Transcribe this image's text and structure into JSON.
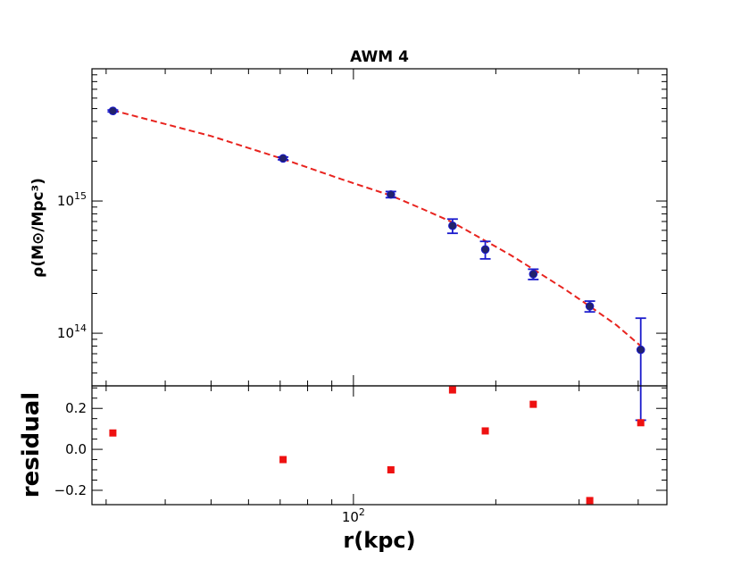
{
  "chart_data": [
    {
      "type": "scatter",
      "title": "AWM 4",
      "xlabel": "r(kpc)",
      "ylabel": "ρ(M⊙/Mpc³)",
      "xscale": "log",
      "yscale": "log",
      "xlim": [
        28,
        460
      ],
      "ylim": [
        40000000000000.0,
        1e+16
      ],
      "xticks": [
        {
          "value": 100,
          "label": "10",
          "exp": "2"
        }
      ],
      "yticks": [
        {
          "value": 100000000000000.0,
          "label": "10",
          "exp": "14"
        },
        {
          "value": 1000000000000000.0,
          "label": "10",
          "exp": "15"
        }
      ],
      "series": [
        {
          "kind": "data",
          "color": "#1f1f9f",
          "x": [
            31,
            71,
            120,
            162,
            190,
            240,
            316,
            405
          ],
          "y": [
            4800000000000000.0,
            2100000000000000.0,
            1120000000000000.0,
            650000000000000.0,
            430000000000000.0,
            280000000000000.0,
            160000000000000.0,
            75000000000000.0
          ],
          "yerr_low": [
            80000000000000.0,
            50000000000000.0,
            60000000000000.0,
            80000000000000.0,
            65000000000000.0,
            25000000000000.0,
            15000000000000.0,
            53000000000000.0
          ],
          "yerr_high": [
            80000000000000.0,
            50000000000000.0,
            60000000000000.0,
            80000000000000.0,
            65000000000000.0,
            25000000000000.0,
            15000000000000.0,
            55000000000000.0
          ]
        },
        {
          "kind": "fit",
          "style": "dashed",
          "color": "#e8231e",
          "x": [
            31,
            50,
            71,
            95,
            120,
            140,
            162,
            190,
            215,
            240,
            280,
            316,
            360,
            405
          ],
          "y": [
            4850000000000000.0,
            3100000000000000.0,
            2080000000000000.0,
            1450000000000000.0,
            1100000000000000.0,
            870000000000000.0,
            690000000000000.0,
            500000000000000.0,
            390000000000000.0,
            305000000000000.0,
            215000000000000.0,
            160000000000000.0,
            115000000000000.0,
            80000000000000.0
          ]
        }
      ]
    },
    {
      "type": "scatter",
      "xlabel": "r(kpc)",
      "ylabel": "residual",
      "xscale": "log",
      "xlim": [
        28,
        460
      ],
      "ylim": [
        -0.27,
        0.31
      ],
      "yticks": [
        {
          "value": 0.2,
          "label": "0.2"
        },
        {
          "value": 0.0,
          "label": "0.0"
        },
        {
          "value": -0.2,
          "label": "−0.2"
        }
      ],
      "series": [
        {
          "kind": "residual",
          "color": "#ee1111",
          "marker": "square",
          "x": [
            31,
            71,
            120,
            162,
            190,
            240,
            316,
            405
          ],
          "y": [
            0.08,
            -0.05,
            -0.1,
            0.29,
            0.09,
            0.22,
            -0.25,
            0.13
          ]
        }
      ]
    }
  ]
}
